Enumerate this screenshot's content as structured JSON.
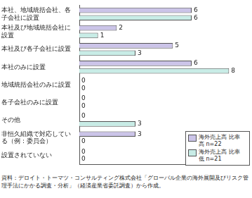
{
  "chart_data": {
    "type": "bar",
    "orientation": "horizontal",
    "categories": [
      "本社、地域統括会社、各子会社に設置",
      "本社及び地域統括会社に設置",
      "本社及び各子会社に設置",
      "本社のみに設置",
      "地域統括会社のみに設置",
      "各子会社のみに設置",
      "その他",
      "非恒久組織で対応している（例：委員会）",
      "設置されていない"
    ],
    "series": [
      {
        "name": "海外売上高 比率 高 n=22",
        "color": "#cbc4e8",
        "values": [
          6,
          2,
          5,
          6,
          0,
          0,
          0,
          3,
          0
        ]
      },
      {
        "name": "海外売上高 比率 低 n=21",
        "color": "#c8ece6",
        "values": [
          6,
          1,
          3,
          8,
          0,
          0,
          3,
          0,
          0
        ]
      }
    ],
    "xlim": [
      0,
      9
    ],
    "data_labels": true,
    "tick_labels": "y",
    "grid": false,
    "legend": "bottom-right",
    "source": "資料：デロイト・トーマツ・コンサルティング株式会社「グローバル企業の海外展開及びリスク管理手法にかかる調査・分析」（経済産業省委託調査）から作成。"
  }
}
